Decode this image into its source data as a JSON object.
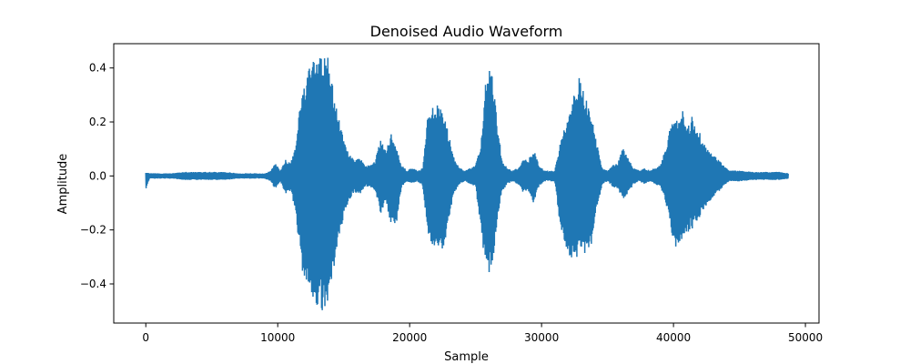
{
  "chart_data": {
    "type": "line",
    "title": "Denoised Audio Waveform",
    "xlabel": "Sample",
    "ylabel": "Amplitude",
    "xlim": [
      -2430,
      51030
    ],
    "ylim": [
      -0.545,
      0.49
    ],
    "xticks": [
      0,
      10000,
      20000,
      30000,
      40000,
      50000
    ],
    "xtick_labels": [
      "0",
      "10000",
      "20000",
      "30000",
      "40000",
      "50000"
    ],
    "yticks": [
      -0.4,
      -0.2,
      0.0,
      0.2,
      0.4
    ],
    "ytick_labels": [
      "−0.4",
      "−0.2",
      "0.0",
      "0.2",
      "0.4"
    ],
    "grid": false,
    "series": [
      {
        "color": "#1f77b4",
        "x": [
          0,
          300,
          1000,
          2000,
          3000,
          4000,
          5000,
          6000,
          7000,
          8000,
          9000,
          9500,
          9800,
          10200,
          10600,
          11000,
          11400,
          11800,
          12200,
          12600,
          13000,
          13400,
          13800,
          14200,
          14600,
          15000,
          15400,
          15800,
          16200,
          16600,
          17000,
          17400,
          17800,
          18200,
          18600,
          19000,
          19400,
          19800,
          20200,
          20600,
          21000,
          21400,
          21800,
          22200,
          22600,
          23000,
          23400,
          23800,
          24200,
          24600,
          25000,
          25400,
          25800,
          26200,
          26600,
          27000,
          27400,
          27800,
          28200,
          28600,
          29000,
          29400,
          29800,
          30200,
          30600,
          31000,
          31400,
          31800,
          32200,
          32600,
          33000,
          33400,
          33800,
          34200,
          34600,
          35000,
          35400,
          35800,
          36200,
          36600,
          37000,
          37400,
          37800,
          38200,
          38600,
          39000,
          39400,
          39800,
          40200,
          40600,
          41000,
          41400,
          41800,
          42200,
          42600,
          43000,
          43400,
          43800,
          44200,
          44600,
          45000,
          46000,
          47000,
          48000,
          48700
        ],
        "y_max": [
          0.015,
          0.01,
          0.01,
          0.01,
          0.015,
          0.015,
          0.015,
          0.015,
          0.01,
          0.01,
          0.01,
          0.02,
          0.05,
          0.02,
          0.06,
          0.05,
          0.12,
          0.32,
          0.38,
          0.42,
          0.44,
          0.44,
          0.45,
          0.32,
          0.22,
          0.14,
          0.08,
          0.06,
          0.07,
          0.04,
          0.04,
          0.06,
          0.14,
          0.09,
          0.16,
          0.1,
          0.04,
          0.02,
          0.03,
          0.02,
          0.03,
          0.24,
          0.26,
          0.27,
          0.22,
          0.15,
          0.06,
          0.03,
          0.02,
          0.03,
          0.04,
          0.12,
          0.38,
          0.42,
          0.22,
          0.06,
          0.03,
          0.02,
          0.03,
          0.06,
          0.06,
          0.1,
          0.04,
          0.02,
          0.02,
          0.02,
          0.12,
          0.2,
          0.25,
          0.35,
          0.37,
          0.28,
          0.22,
          0.12,
          0.03,
          0.02,
          0.04,
          0.05,
          0.11,
          0.06,
          0.03,
          0.02,
          0.03,
          0.02,
          0.03,
          0.04,
          0.1,
          0.2,
          0.2,
          0.26,
          0.18,
          0.22,
          0.18,
          0.14,
          0.1,
          0.08,
          0.06,
          0.04,
          0.02,
          0.02,
          0.02,
          0.015,
          0.015,
          0.015,
          0.01
        ],
        "y_min": [
          -0.05,
          -0.01,
          -0.01,
          -0.01,
          -0.015,
          -0.015,
          -0.015,
          -0.015,
          -0.01,
          -0.01,
          -0.01,
          -0.02,
          -0.05,
          -0.02,
          -0.07,
          -0.06,
          -0.15,
          -0.35,
          -0.42,
          -0.46,
          -0.49,
          -0.5,
          -0.46,
          -0.36,
          -0.25,
          -0.15,
          -0.09,
          -0.06,
          -0.07,
          -0.04,
          -0.04,
          -0.06,
          -0.14,
          -0.1,
          -0.18,
          -0.18,
          -0.04,
          -0.02,
          -0.03,
          -0.02,
          -0.04,
          -0.22,
          -0.26,
          -0.27,
          -0.27,
          -0.15,
          -0.06,
          -0.03,
          -0.02,
          -0.03,
          -0.04,
          -0.2,
          -0.36,
          -0.37,
          -0.18,
          -0.06,
          -0.03,
          -0.02,
          -0.03,
          -0.06,
          -0.06,
          -0.1,
          -0.04,
          -0.02,
          -0.02,
          -0.02,
          -0.18,
          -0.27,
          -0.3,
          -0.31,
          -0.3,
          -0.28,
          -0.25,
          -0.12,
          -0.03,
          -0.02,
          -0.04,
          -0.05,
          -0.09,
          -0.06,
          -0.03,
          -0.02,
          -0.03,
          -0.02,
          -0.03,
          -0.04,
          -0.1,
          -0.2,
          -0.28,
          -0.24,
          -0.22,
          -0.2,
          -0.18,
          -0.13,
          -0.1,
          -0.08,
          -0.06,
          -0.04,
          -0.02,
          -0.02,
          -0.02,
          -0.015,
          -0.015,
          -0.015,
          -0.01
        ]
      }
    ]
  }
}
